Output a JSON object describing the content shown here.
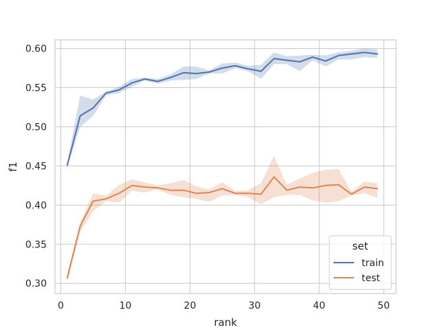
{
  "chart_data": {
    "type": "line",
    "xlabel": "rank",
    "ylabel": "f1",
    "xlim": [
      -0.9,
      51.9
    ],
    "ylim": [
      0.287,
      0.611
    ],
    "x_ticks": [
      0,
      10,
      20,
      30,
      40,
      50
    ],
    "y_ticks": [
      0.3,
      0.35,
      0.4,
      0.45,
      0.5,
      0.55,
      0.6
    ],
    "y_tick_labels": [
      "0.30",
      "0.35",
      "0.40",
      "0.45",
      "0.50",
      "0.55",
      "0.60"
    ],
    "grid": true,
    "legend": {
      "title": "set",
      "position": "bottom-right"
    },
    "x": [
      1,
      3,
      5,
      7,
      9,
      11,
      13,
      15,
      17,
      19,
      21,
      23,
      25,
      27,
      29,
      31,
      33,
      35,
      37,
      39,
      41,
      43,
      45,
      47,
      49
    ],
    "series": [
      {
        "name": "train",
        "color": "#4c72b0",
        "values": [
          0.451,
          0.514,
          0.524,
          0.543,
          0.547,
          0.556,
          0.561,
          0.558,
          0.563,
          0.569,
          0.568,
          0.57,
          0.575,
          0.578,
          0.574,
          0.571,
          0.587,
          0.585,
          0.583,
          0.589,
          0.584,
          0.591,
          0.593,
          0.595,
          0.593
        ],
        "ci_lower": [
          0.448,
          0.5,
          0.514,
          0.54,
          0.543,
          0.551,
          0.559,
          0.555,
          0.559,
          0.56,
          0.561,
          0.568,
          0.568,
          0.575,
          0.571,
          0.561,
          0.58,
          0.58,
          0.571,
          0.585,
          0.577,
          0.586,
          0.586,
          0.589,
          0.588
        ],
        "ci_upper": [
          0.454,
          0.54,
          0.535,
          0.545,
          0.551,
          0.561,
          0.563,
          0.561,
          0.567,
          0.577,
          0.577,
          0.572,
          0.581,
          0.582,
          0.578,
          0.579,
          0.595,
          0.59,
          0.591,
          0.592,
          0.591,
          0.595,
          0.597,
          0.6,
          0.599
        ]
      },
      {
        "name": "test",
        "color": "#dd8452",
        "values": [
          0.307,
          0.373,
          0.405,
          0.408,
          0.415,
          0.425,
          0.423,
          0.422,
          0.419,
          0.419,
          0.415,
          0.416,
          0.421,
          0.415,
          0.415,
          0.414,
          0.436,
          0.419,
          0.423,
          0.422,
          0.425,
          0.426,
          0.414,
          0.423,
          0.421
        ],
        "ci_lower": [
          0.302,
          0.366,
          0.392,
          0.405,
          0.403,
          0.418,
          0.416,
          0.42,
          0.413,
          0.41,
          0.408,
          0.404,
          0.412,
          0.413,
          0.41,
          0.401,
          0.41,
          0.413,
          0.413,
          0.406,
          0.403,
          0.405,
          0.412,
          0.415,
          0.409
        ],
        "ci_upper": [
          0.311,
          0.378,
          0.415,
          0.412,
          0.426,
          0.433,
          0.429,
          0.425,
          0.428,
          0.432,
          0.424,
          0.42,
          0.429,
          0.418,
          0.419,
          0.428,
          0.463,
          0.426,
          0.434,
          0.441,
          0.445,
          0.446,
          0.417,
          0.43,
          0.428
        ]
      }
    ]
  }
}
